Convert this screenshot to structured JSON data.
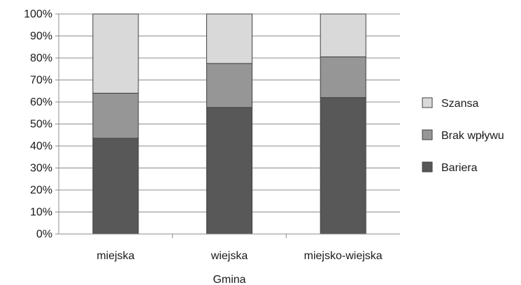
{
  "chart_data": {
    "type": "bar",
    "stacked": true,
    "categories": [
      "miejska",
      "wiejska",
      "miejsko-wiejska"
    ],
    "series": [
      {
        "name": "Bariera",
        "values": [
          43.5,
          57.5,
          62.0
        ],
        "color": "#585858"
      },
      {
        "name": "Brak wpływu",
        "values": [
          20.5,
          20.0,
          18.5
        ],
        "color": "#969696"
      },
      {
        "name": "Szansa",
        "values": [
          36.0,
          22.5,
          19.5
        ],
        "color": "#d9d9d9"
      }
    ],
    "title": "",
    "xlabel": "Gmina",
    "ylabel": "",
    "ylim": [
      0,
      100
    ],
    "y_ticks": [
      "0%",
      "10%",
      "20%",
      "30%",
      "40%",
      "50%",
      "60%",
      "70%",
      "80%",
      "90%",
      "100%"
    ],
    "grid": true,
    "legend_position": "right",
    "legend_order": [
      "Szansa",
      "Brak wpływu",
      "Bariera"
    ]
  }
}
